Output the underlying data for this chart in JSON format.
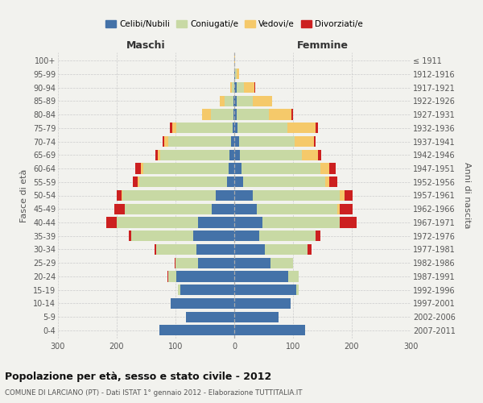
{
  "age_groups": [
    "0-4",
    "5-9",
    "10-14",
    "15-19",
    "20-24",
    "25-29",
    "30-34",
    "35-39",
    "40-44",
    "45-49",
    "50-54",
    "55-59",
    "60-64",
    "65-69",
    "70-74",
    "75-79",
    "80-84",
    "85-89",
    "90-94",
    "95-99",
    "100+"
  ],
  "birth_years": [
    "2007-2011",
    "2002-2006",
    "1997-2001",
    "1992-1996",
    "1987-1991",
    "1982-1986",
    "1977-1981",
    "1972-1976",
    "1967-1971",
    "1962-1966",
    "1957-1961",
    "1952-1956",
    "1947-1951",
    "1942-1946",
    "1937-1941",
    "1932-1936",
    "1927-1931",
    "1922-1926",
    "1917-1921",
    "1912-1916",
    "≤ 1911"
  ],
  "colors": {
    "celibe": "#4472a8",
    "coniugato": "#c8d9a4",
    "vedovo": "#f5c96a",
    "divorziato": "#cc2020"
  },
  "males": {
    "celibe": [
      128,
      82,
      108,
      92,
      98,
      62,
      65,
      70,
      62,
      38,
      32,
      12,
      10,
      8,
      5,
      3,
      2,
      1,
      0,
      0,
      0
    ],
    "coniugato": [
      0,
      0,
      0,
      4,
      14,
      38,
      68,
      105,
      138,
      148,
      158,
      150,
      145,
      118,
      108,
      95,
      38,
      15,
      4,
      0,
      0
    ],
    "vedovo": [
      0,
      0,
      0,
      0,
      0,
      0,
      0,
      0,
      0,
      0,
      2,
      2,
      4,
      4,
      6,
      8,
      15,
      8,
      3,
      0,
      0
    ],
    "divorziato": [
      0,
      0,
      0,
      0,
      2,
      2,
      3,
      5,
      18,
      18,
      8,
      9,
      10,
      4,
      3,
      4,
      0,
      0,
      0,
      0,
      0
    ]
  },
  "females": {
    "celibe": [
      120,
      76,
      96,
      105,
      92,
      62,
      52,
      42,
      48,
      38,
      32,
      15,
      12,
      10,
      8,
      6,
      4,
      4,
      4,
      2,
      0
    ],
    "coniugato": [
      0,
      0,
      0,
      4,
      18,
      38,
      72,
      96,
      132,
      138,
      148,
      140,
      135,
      105,
      95,
      85,
      55,
      28,
      12,
      2,
      0
    ],
    "vedovo": [
      0,
      0,
      0,
      0,
      0,
      0,
      0,
      0,
      0,
      4,
      7,
      7,
      14,
      28,
      32,
      48,
      38,
      32,
      18,
      4,
      1
    ],
    "divorziato": [
      0,
      0,
      0,
      0,
      0,
      0,
      7,
      9,
      28,
      22,
      15,
      13,
      11,
      5,
      3,
      4,
      3,
      0,
      2,
      0,
      0
    ]
  },
  "title": "Popolazione per età, sesso e stato civile - 2012",
  "subtitle": "COMUNE DI LARCIANO (PT) - Dati ISTAT 1° gennaio 2012 - Elaborazione TUTTITALIA.IT",
  "ylabel_left": "Fasce di età",
  "ylabel_right": "Anni di nascita",
  "xlabel_maschi": "Maschi",
  "xlabel_femmine": "Femmine",
  "legend_labels": [
    "Celibi/Nubili",
    "Coniugati/e",
    "Vedovi/e",
    "Divorziati/e"
  ],
  "xlim": 300,
  "bg_color": "#f2f2ee",
  "grid_color": "#cccccc"
}
